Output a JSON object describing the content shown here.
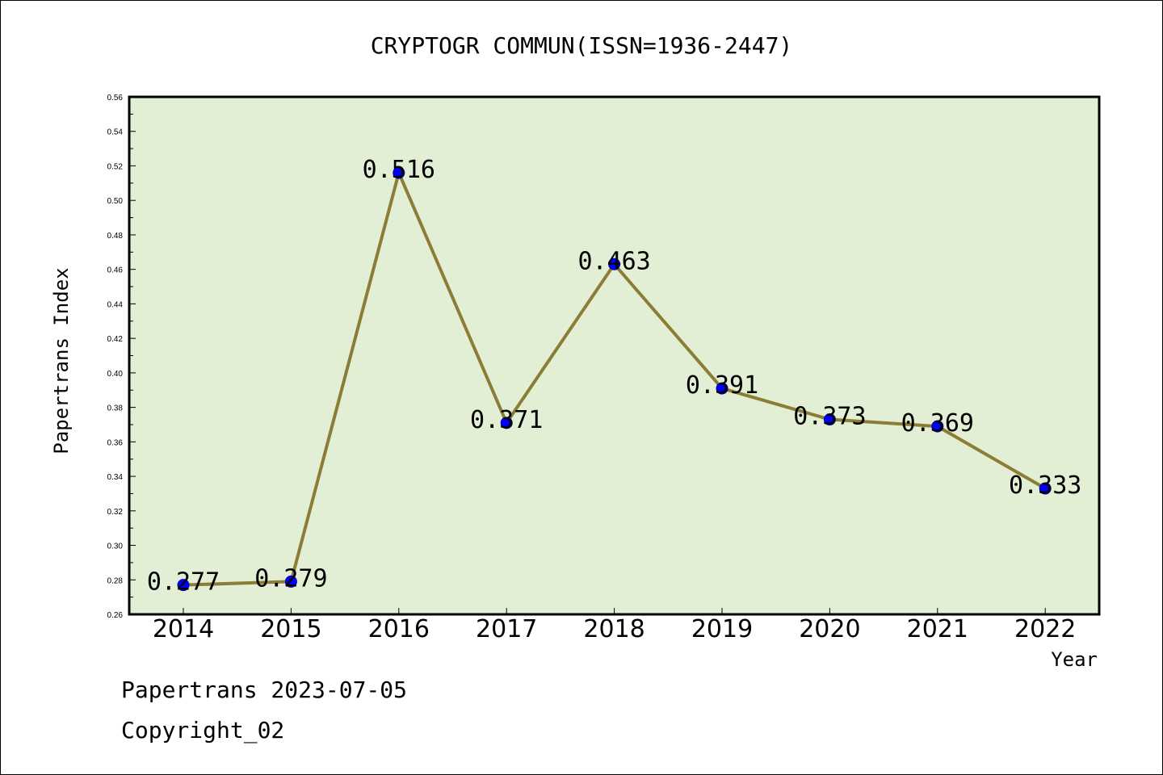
{
  "chart_data": {
    "type": "line",
    "title": "CRYPTOGR COMMUN(ISSN=1936-2447)",
    "xlabel": "Year",
    "ylabel": "Papertrans Index",
    "ylim": [
      0.26,
      0.56
    ],
    "y_ticks": [
      "0.26",
      "0.28",
      "0.30",
      "0.32",
      "0.34",
      "0.36",
      "0.38",
      "0.40",
      "0.42",
      "0.44",
      "0.46",
      "0.48",
      "0.50",
      "0.52",
      "0.54",
      "0.56"
    ],
    "categories": [
      "2014",
      "2015",
      "2016",
      "2017",
      "2018",
      "2019",
      "2020",
      "2021",
      "2022"
    ],
    "series": [
      {
        "values": [
          0.277,
          0.279,
          0.516,
          0.371,
          0.463,
          0.391,
          0.373,
          0.369,
          0.333
        ]
      }
    ],
    "data_labels": [
      "0.277",
      "0.279",
      "0.516",
      "0.371",
      "0.463",
      "0.391",
      "0.373",
      "0.369",
      "0.333"
    ],
    "plot_background": "#e2efd5",
    "line_color": "#8b7d35",
    "marker_color": "#0000ff",
    "grid": false
  },
  "footer": {
    "line1": "Papertrans 2023-07-05",
    "line2": "Copyright_02"
  }
}
